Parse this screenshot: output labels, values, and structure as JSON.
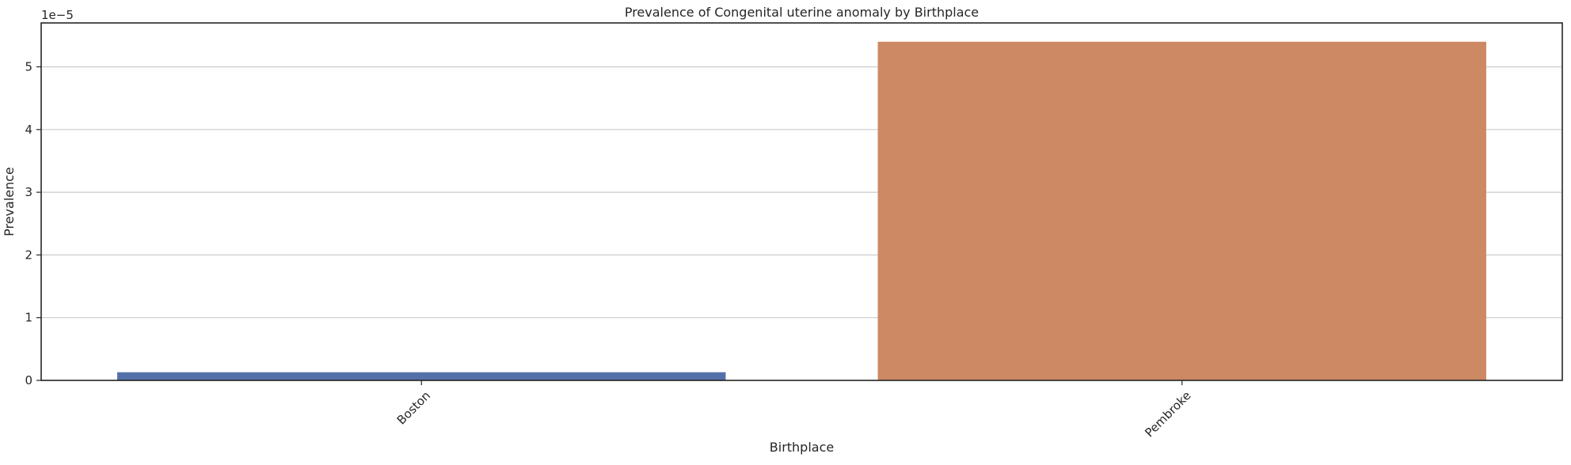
{
  "chart_data": {
    "type": "bar",
    "title": "Prevalence of Congenital uterine anomaly by Birthplace",
    "xlabel": "Birthplace",
    "ylabel": "Prevalence",
    "scale_label": "1e−5",
    "categories": [
      "Boston",
      "Pembroke"
    ],
    "values": [
      1.3e-06,
      5.4e-05
    ],
    "colors": [
      "#5470a8",
      "#cc8963"
    ],
    "ylim": [
      0,
      5.7e-05
    ],
    "yticks": [
      0,
      1e-05,
      2e-05,
      3e-05,
      4e-05,
      5e-05
    ],
    "ytick_labels": [
      "0",
      "1",
      "2",
      "3",
      "4",
      "5"
    ],
    "grid": "horizontal",
    "xtick_rotation": "45 degrees"
  }
}
